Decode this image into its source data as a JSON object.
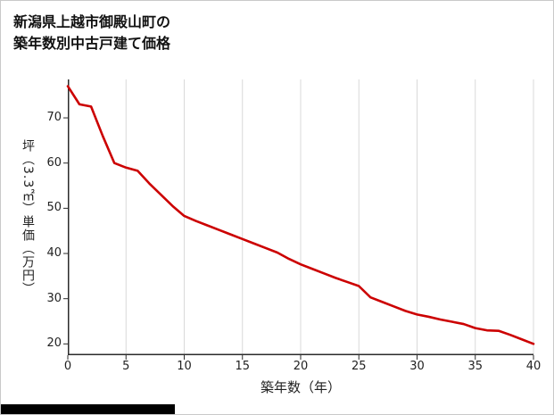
{
  "header": {
    "title_line1": "新潟県上越市御殿山町の",
    "title_line2": "築年数別中古戸建て価格"
  },
  "chart_data": {
    "type": "line",
    "title": "新潟県上越市御殿山町の築年数別中古戸建て価格",
    "xlabel": "築年数（年）",
    "ylabel": "坪（3.3㎡）単価（万円）",
    "x": [
      0,
      1,
      2,
      3,
      4,
      5,
      6,
      7,
      8,
      9,
      10,
      11,
      12,
      13,
      14,
      15,
      16,
      17,
      18,
      19,
      20,
      21,
      22,
      23,
      24,
      25,
      26,
      27,
      28,
      29,
      30,
      31,
      32,
      33,
      34,
      35,
      36,
      37,
      38,
      39,
      40
    ],
    "y": [
      77,
      73,
      72.5,
      66,
      60,
      59,
      58.3,
      55.5,
      53,
      50.5,
      48.3,
      47.2,
      46.2,
      45.2,
      44.2,
      43.2,
      42.2,
      41.2,
      40.2,
      38.8,
      37.6,
      36.6,
      35.6,
      34.6,
      33.7,
      32.8,
      30.3,
      29.3,
      28.3,
      27.3,
      26.5,
      26,
      25.4,
      24.9,
      24.4,
      23.5,
      23,
      22.9,
      22,
      21,
      20
    ],
    "xticks": [
      0,
      5,
      10,
      15,
      20,
      25,
      30,
      35,
      40
    ],
    "yticks": [
      20,
      30,
      40,
      50,
      60,
      70
    ],
    "xlim": [
      0,
      40
    ],
    "ylim": [
      17.5,
      78.5
    ],
    "grid": "vertical-only",
    "legend": "none",
    "line_color": "#cc0000",
    "grid_color": "#d9d9d9",
    "axis_color": "#2b2b2b"
  }
}
